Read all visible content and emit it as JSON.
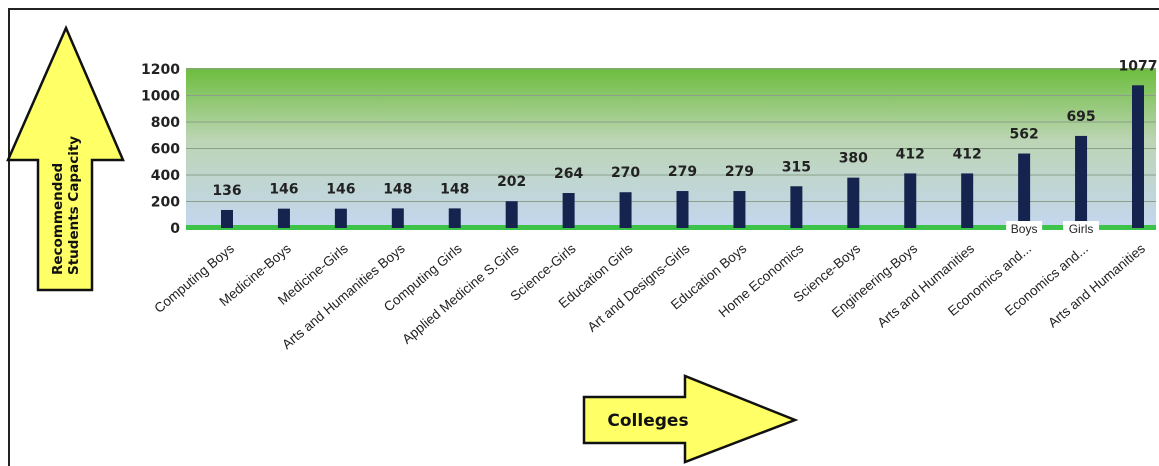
{
  "chart_data": {
    "type": "bar",
    "categories": [
      "Computing Boys",
      "Medicine-Boys",
      "Medicine-Girls",
      "Arts and Humanities Boys",
      "Computing Girls",
      "Applied Medicine S.Girls",
      "Science-Girls",
      "Education Girls",
      "Art and Designs-Girls",
      "Education Boys",
      "Home Economics",
      "Science-Boys",
      "Engineering-Boys",
      "Arts and Humanities",
      "Economics and...",
      "Economics and...",
      "Arts and Humanities"
    ],
    "values": [
      136,
      146,
      146,
      148,
      148,
      202,
      264,
      270,
      279,
      279,
      315,
      380,
      412,
      412,
      562,
      695,
      1077
    ],
    "data_labels": [
      "136",
      "146",
      "146",
      "148",
      "148",
      "202",
      "264",
      "270",
      "279",
      "279",
      "315",
      "380",
      "412",
      "412",
      "562",
      "695",
      "1077"
    ],
    "yticks": [
      "0",
      "200",
      "400",
      "600",
      "800",
      "1000",
      "1200"
    ],
    "ylim": [
      0,
      1200
    ],
    "ylabel": "Recommended Students Capacity",
    "xlabel": "Colleges",
    "grid": true,
    "bar_color": "#14244f",
    "bar_annotations": [
      {
        "index": 14,
        "text": "Boys"
      },
      {
        "index": 15,
        "text": "Girls"
      }
    ]
  },
  "colors": {
    "arrow_fill": "#ffff66",
    "plot_top": "#7ec34a",
    "plot_bottom": "#c6d7ef",
    "baseline": "#3ec34a"
  }
}
